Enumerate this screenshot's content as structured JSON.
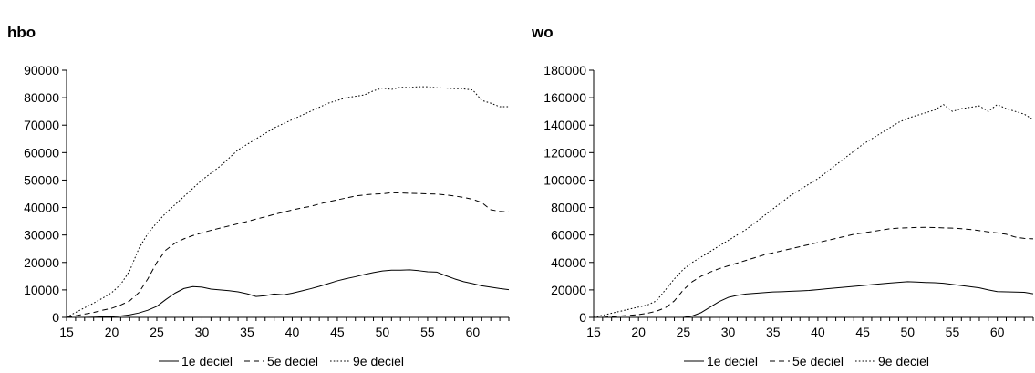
{
  "chart_data": [
    {
      "type": "line",
      "title": "hbo",
      "xlabel": "",
      "ylabel": "",
      "xlim": [
        15,
        64
      ],
      "ylim": [
        0,
        90000
      ],
      "x_ticks": [
        15,
        20,
        25,
        30,
        35,
        40,
        45,
        50,
        55,
        60
      ],
      "y_ticks": [
        0,
        10000,
        20000,
        30000,
        40000,
        50000,
        60000,
        70000,
        80000,
        90000
      ],
      "grid": false,
      "legend_position": "bottom",
      "x": [
        15,
        16,
        17,
        18,
        19,
        20,
        21,
        22,
        23,
        24,
        25,
        26,
        27,
        28,
        29,
        30,
        31,
        32,
        33,
        34,
        35,
        36,
        37,
        38,
        39,
        40,
        41,
        42,
        43,
        44,
        45,
        46,
        47,
        48,
        49,
        50,
        51,
        52,
        53,
        54,
        55,
        56,
        57,
        58,
        59,
        60,
        61,
        62,
        63,
        64
      ],
      "series": [
        {
          "name": "1e deciel",
          "style": "solid",
          "values": [
            0,
            0,
            0,
            100,
            200,
            300,
            500,
            900,
            1600,
            2600,
            4000,
            6500,
            8800,
            10500,
            11200,
            11000,
            10300,
            10000,
            9700,
            9300,
            8600,
            7600,
            7900,
            8500,
            8200,
            8800,
            9600,
            10400,
            11300,
            12300,
            13300,
            14100,
            14800,
            15600,
            16300,
            16900,
            17200,
            17200,
            17300,
            17000,
            16600,
            16500,
            15200,
            14000,
            13000,
            12300,
            11500,
            11000,
            10500,
            10100
          ]
        },
        {
          "name": "5e deciel",
          "style": "dashed",
          "values": [
            0,
            600,
            1200,
            1800,
            2600,
            3300,
            4500,
            6000,
            9000,
            14000,
            20000,
            24500,
            27000,
            28600,
            29800,
            30800,
            31700,
            32500,
            33300,
            34100,
            34900,
            35800,
            36600,
            37500,
            38300,
            39100,
            39800,
            40400,
            41300,
            42100,
            42800,
            43500,
            44200,
            44600,
            44900,
            45000,
            45400,
            45300,
            45200,
            45100,
            45000,
            44900,
            44600,
            44200,
            43700,
            43000,
            41800,
            39200,
            38600,
            38400
          ]
        },
        {
          "name": "9e deciel",
          "style": "dotted",
          "values": [
            0,
            1800,
            3500,
            5200,
            7000,
            9000,
            12000,
            17000,
            25000,
            30500,
            34500,
            38000,
            41000,
            44000,
            47000,
            50000,
            52500,
            55000,
            58000,
            61000,
            63000,
            65000,
            67000,
            69000,
            70500,
            72000,
            73500,
            75000,
            76500,
            78000,
            79000,
            80000,
            80500,
            81000,
            82500,
            83500,
            83000,
            83800,
            83700,
            84000,
            84000,
            83600,
            83500,
            83300,
            83200,
            82800,
            79000,
            78000,
            76700,
            76700
          ]
        }
      ]
    },
    {
      "type": "line",
      "title": "wo",
      "xlabel": "",
      "ylabel": "",
      "xlim": [
        15,
        64
      ],
      "ylim": [
        0,
        180000
      ],
      "x_ticks": [
        15,
        20,
        25,
        30,
        35,
        40,
        45,
        50,
        55,
        60
      ],
      "y_ticks": [
        0,
        20000,
        40000,
        60000,
        80000,
        100000,
        120000,
        140000,
        160000,
        180000
      ],
      "grid": false,
      "legend_position": "bottom",
      "x": [
        15,
        16,
        17,
        18,
        19,
        20,
        21,
        22,
        23,
        24,
        25,
        26,
        27,
        28,
        29,
        30,
        31,
        32,
        33,
        34,
        35,
        36,
        37,
        38,
        39,
        40,
        41,
        42,
        43,
        44,
        45,
        46,
        47,
        48,
        49,
        50,
        51,
        52,
        53,
        54,
        55,
        56,
        57,
        58,
        59,
        60,
        61,
        62,
        63,
        64
      ],
      "series": [
        {
          "name": "1e deciel",
          "style": "solid",
          "values": [
            0,
            0,
            0,
            0,
            0,
            0,
            0,
            0,
            0,
            0,
            0,
            1000,
            3500,
            7500,
            11500,
            14500,
            16000,
            17000,
            17500,
            18000,
            18500,
            18700,
            19000,
            19300,
            19600,
            20200,
            20800,
            21400,
            22000,
            22600,
            23200,
            23800,
            24400,
            25000,
            25500,
            26000,
            25700,
            25400,
            25200,
            24800,
            24000,
            23200,
            22300,
            21500,
            20000,
            18800,
            18600,
            18400,
            18300,
            17200
          ]
        },
        {
          "name": "5e deciel",
          "style": "dashed",
          "values": [
            0,
            0,
            500,
            1000,
            1500,
            2000,
            3000,
            4500,
            7000,
            12000,
            20000,
            26000,
            30000,
            33000,
            35500,
            37500,
            39500,
            41500,
            43500,
            45500,
            47000,
            48500,
            50000,
            51500,
            53000,
            54500,
            56000,
            57500,
            59000,
            60500,
            61500,
            62500,
            63500,
            64500,
            65000,
            65300,
            65500,
            65600,
            65400,
            65200,
            65000,
            64600,
            64000,
            63200,
            62300,
            61500,
            60500,
            58500,
            57500,
            57200
          ]
        },
        {
          "name": "9e deciel",
          "style": "dotted",
          "values": [
            0,
            1500,
            3000,
            4500,
            6000,
            7500,
            9000,
            12000,
            20000,
            28000,
            35000,
            40000,
            44000,
            48000,
            52000,
            56000,
            60000,
            64000,
            69000,
            74000,
            79000,
            84000,
            89000,
            93000,
            97000,
            101000,
            106000,
            111000,
            116000,
            121000,
            126000,
            130000,
            134000,
            138000,
            142000,
            145000,
            147000,
            149000,
            151000,
            155000,
            150000,
            152000,
            153000,
            154000,
            150000,
            155000,
            152000,
            150000,
            148000,
            144000
          ]
        }
      ]
    }
  ]
}
